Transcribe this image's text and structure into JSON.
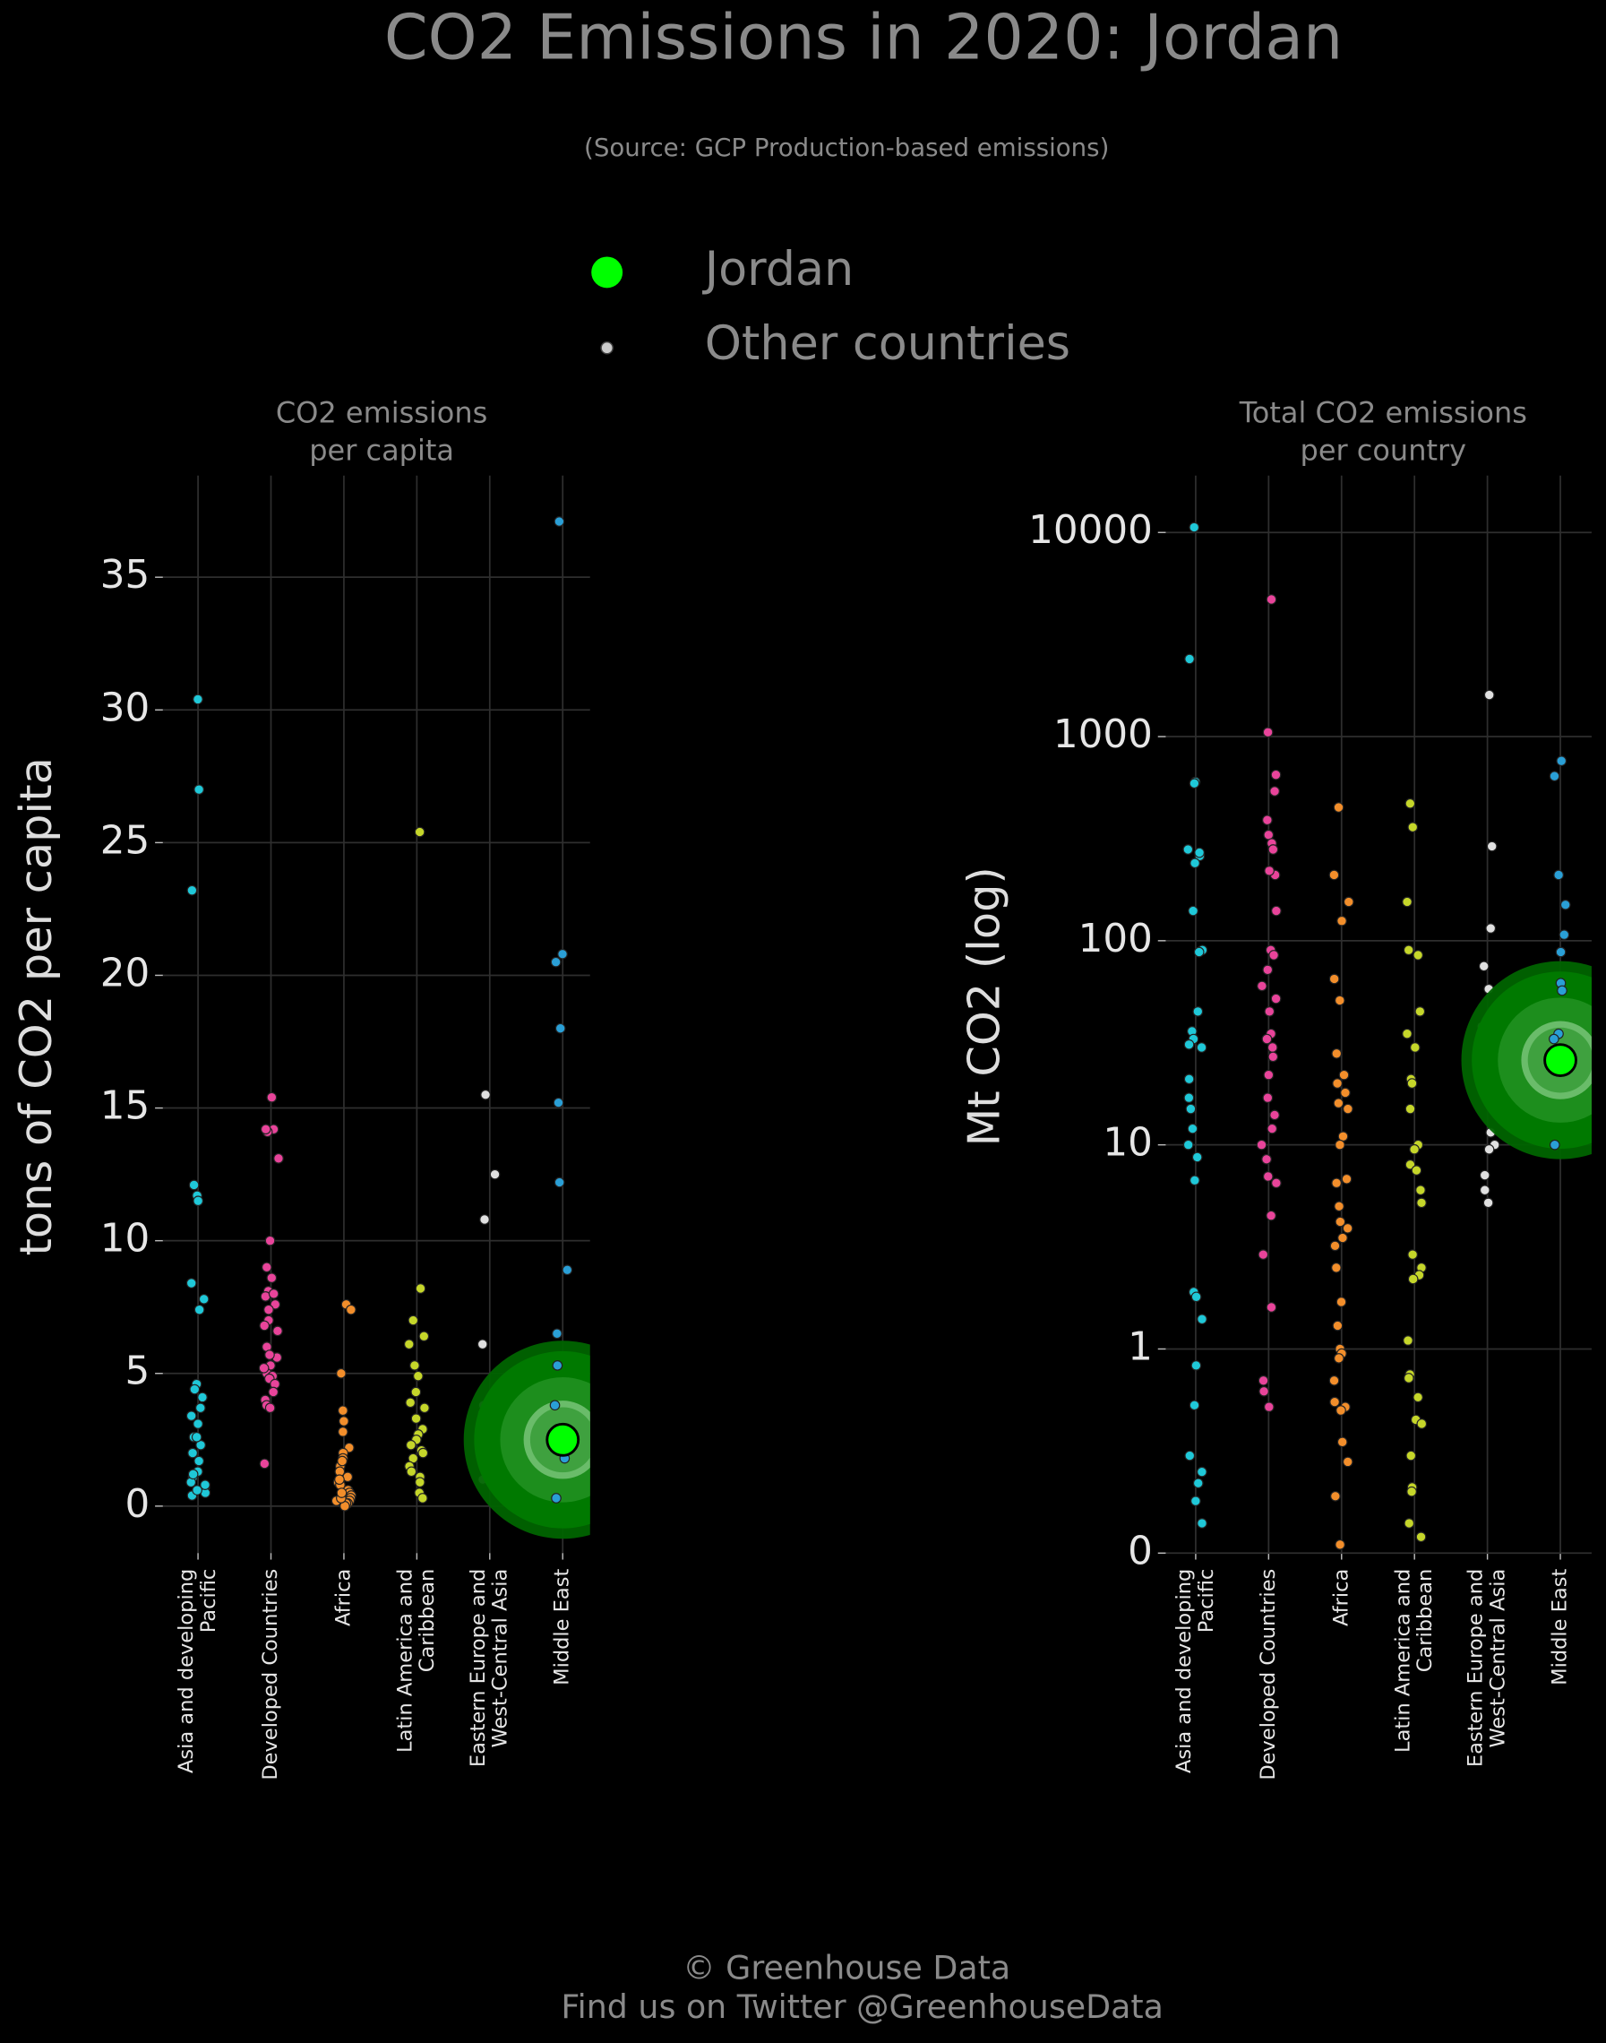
{
  "title": "CO2 Emissions in 2020: Jordan",
  "subtitle": "(Source: GCP Production-based emissions)",
  "legend": [
    "Jordan",
    "Other countries"
  ],
  "highlight_color": "#00ff00",
  "others_color": "#cccccc",
  "footer": [
    "© Greenhouse Data",
    "Find us on Twitter @GreenhouseData"
  ],
  "chart_data": [
    {
      "type": "strip",
      "title": [
        "CO2 emissions",
        "per capita"
      ],
      "ylabel": "tons of CO2 per capita",
      "log": false,
      "grid": true,
      "ylim": [
        -1.77,
        38.83
      ],
      "yticks": [
        0,
        5,
        10,
        15,
        20,
        25,
        30,
        35
      ],
      "series": [
        {
          "name": [
            "Asia and developing",
            "Pacific"
          ],
          "color": "#1fc8d8",
          "values": [
            30.4,
            27.0,
            23.2,
            12.1,
            11.7,
            11.5,
            8.4,
            7.8,
            7.4,
            4.6,
            4.4,
            4.1,
            3.7,
            3.4,
            3.1,
            2.6,
            2.3,
            2.0,
            1.7,
            1.3,
            1.1,
            0.9,
            0.7,
            0.5,
            0.4,
            0.6,
            0.8,
            1.2,
            2.6
          ]
        },
        {
          "name": [
            "Developed Countries"
          ],
          "color": "#e8449a",
          "values": [
            15.4,
            14.2,
            14.1,
            14.2,
            13.1,
            10.0,
            9.0,
            8.6,
            8.1,
            7.9,
            7.6,
            7.4,
            7.0,
            6.8,
            6.6,
            6.0,
            5.6,
            5.3,
            5.0,
            4.9,
            4.8,
            4.6,
            4.3,
            4.0,
            3.8,
            3.7,
            1.6,
            5.2,
            5.7,
            8.0
          ]
        },
        {
          "name": [
            "Africa"
          ],
          "color": "#f28e2b",
          "values": [
            7.6,
            7.4,
            5.0,
            3.6,
            3.2,
            2.8,
            2.2,
            2.0,
            1.8,
            1.5,
            1.3,
            1.1,
            0.9,
            0.8,
            0.6,
            0.5,
            0.4,
            0.3,
            0.2,
            0.1,
            0.1,
            0.0,
            0.2,
            0.3,
            0.5,
            1.0,
            1.7
          ]
        },
        {
          "name": [
            "Latin America and",
            "Caribbean"
          ],
          "color": "#c5d62a",
          "values": [
            25.4,
            8.2,
            7.0,
            6.4,
            6.1,
            5.3,
            4.9,
            4.3,
            3.9,
            3.7,
            3.3,
            2.9,
            2.7,
            2.5,
            2.3,
            2.1,
            2.0,
            1.8,
            1.5,
            1.3,
            1.1,
            0.9,
            0.5,
            0.3
          ]
        },
        {
          "name": [
            "Eastern Europe and",
            "West-Central Asia"
          ],
          "color": "#e0e0e0",
          "values": [
            15.5,
            12.5,
            10.8,
            6.1,
            3.8,
            3.5,
            3.4,
            2.6,
            2.0,
            1.8,
            1.3,
            1.0
          ]
        },
        {
          "name": [
            "Middle East"
          ],
          "color": "#2a9fd6",
          "values": [
            37.1,
            20.8,
            20.5,
            18.0,
            15.2,
            12.2,
            8.9,
            6.5,
            5.3,
            3.8,
            1.8,
            0.3
          ],
          "highlight": 2.5
        }
      ]
    },
    {
      "type": "strip",
      "title": [
        "Total CO2 emissions",
        "per country"
      ],
      "ylabel": "Mt CO2 (log)",
      "log": true,
      "grid": true,
      "ylim": [
        0.1,
        19000
      ],
      "yticks": [
        {
          "value": 0.1,
          "label": "0"
        },
        1,
        10,
        100,
        1000,
        10000
      ],
      "series": [
        {
          "name": [
            "Asia and developing",
            "Pacific"
          ],
          "color": "#1fc8d8",
          "values": [
            10600,
            2400,
            600,
            590,
            280,
            260,
            240,
            270,
            140,
            90,
            88,
            45,
            36,
            33,
            31,
            30,
            21,
            17,
            15,
            12,
            10,
            8.7,
            6.7,
            1.9,
            1.8,
            1.4,
            0.83,
            0.53,
            0.3,
            0.25,
            0.22,
            0.18,
            0.14
          ]
        },
        {
          "name": [
            "Developed Countries"
          ],
          "color": "#e8449a",
          "values": [
            4700,
            1050,
            650,
            540,
            390,
            330,
            300,
            280,
            210,
            220,
            140,
            90,
            85,
            72,
            60,
            52,
            45,
            35,
            33,
            30,
            27,
            22,
            17,
            14,
            12,
            10,
            8.5,
            7,
            6.5,
            4.5,
            2.9,
            1.6,
            0.7,
            0.62,
            0.52
          ]
        },
        {
          "name": [
            "Africa"
          ],
          "color": "#f28e2b",
          "values": [
            450,
            210,
            155,
            125,
            65,
            51,
            28,
            22,
            20,
            18,
            16,
            15,
            11,
            10,
            6.8,
            6.5,
            5,
            4.2,
            3.9,
            3.5,
            3.2,
            2.5,
            1.7,
            1.3,
            1.0,
            0.95,
            0.9,
            0.7,
            0.55,
            0.52,
            0.5,
            0.35,
            0.28,
            0.19,
            0.11
          ]
        },
        {
          "name": [
            "Latin America and",
            "Caribbean"
          ],
          "color": "#c5d62a",
          "values": [
            470,
            360,
            155,
            90,
            85,
            45,
            35,
            30,
            21,
            20,
            15,
            10,
            9.5,
            8,
            7.5,
            6,
            5.2,
            2.9,
            2.5,
            2.3,
            2.2,
            1.1,
            0.75,
            0.72,
            0.58,
            0.45,
            0.43,
            0.3,
            0.21,
            0.2,
            0.14,
            0.12
          ]
        },
        {
          "name": [
            "Eastern Europe and",
            "West-Central Asia"
          ],
          "color": "#e0e0e0",
          "values": [
            1600,
            290,
            115,
            75,
            58,
            38,
            11.5,
            10,
            9.5,
            7.1,
            6,
            5.2
          ]
        },
        {
          "name": [
            "Middle East"
          ],
          "color": "#2a9fd6",
          "values": [
            760,
            640,
            210,
            150,
            107,
            88,
            62,
            57,
            35,
            33,
            10
          ],
          "highlight": 26
        }
      ]
    }
  ]
}
